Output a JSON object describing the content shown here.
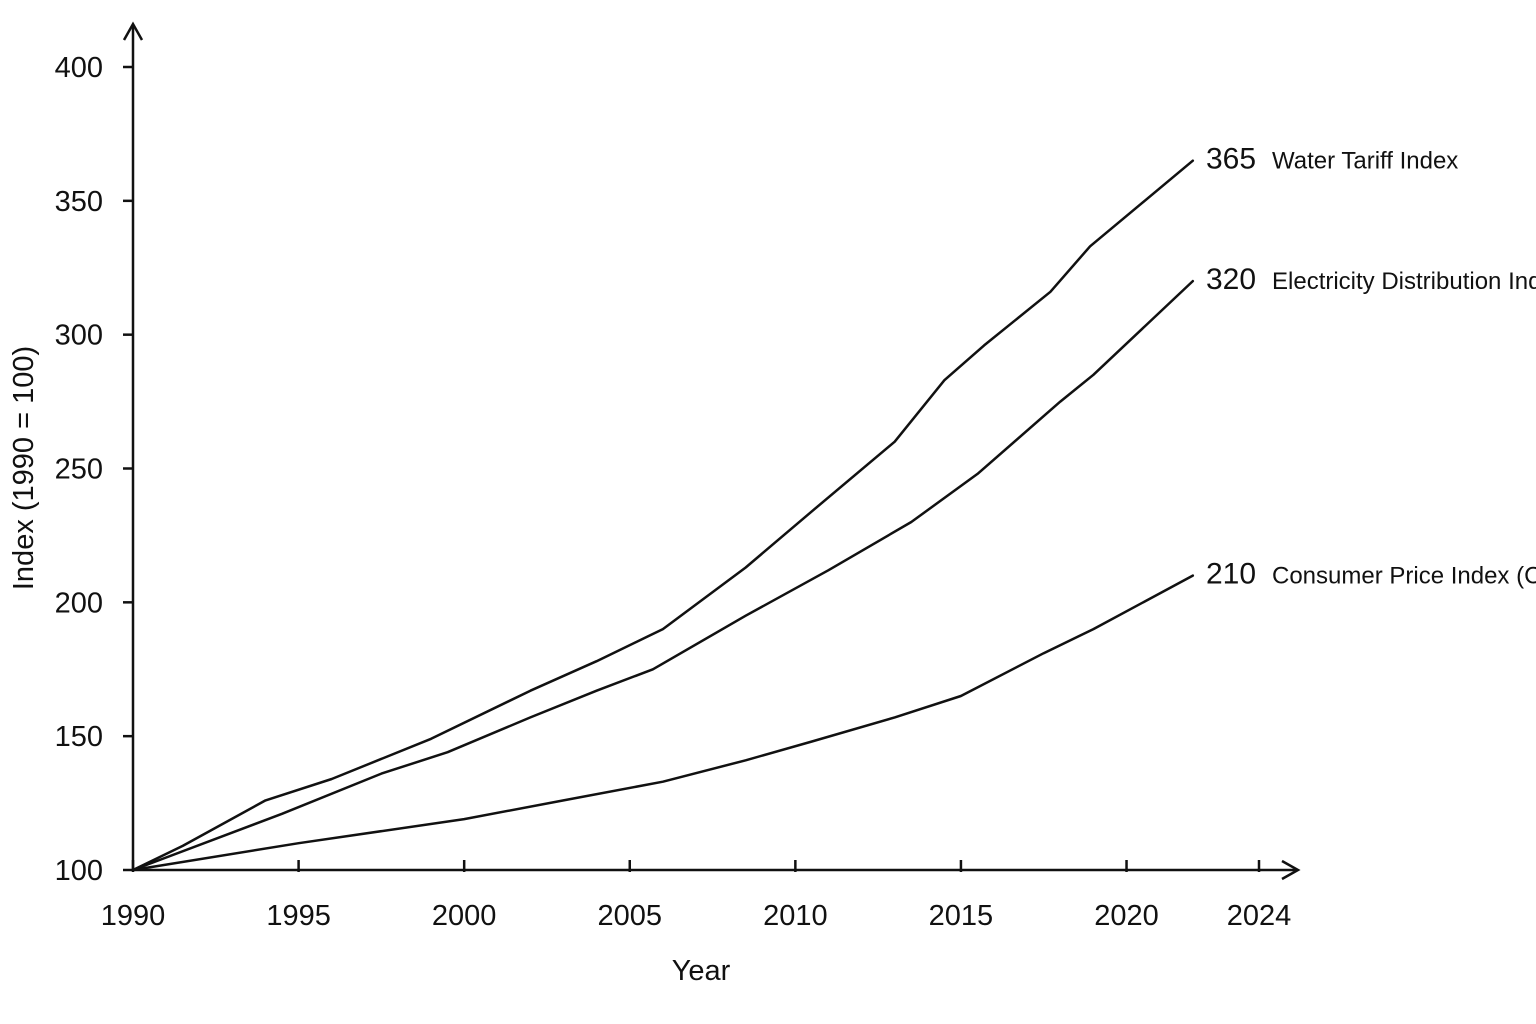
{
  "chart_data": {
    "type": "line",
    "title": "",
    "xlabel": "Year",
    "ylabel": "Index (1990 = 100)",
    "xlim": [
      1990,
      2024
    ],
    "ylim": [
      100,
      400
    ],
    "x_ticks": [
      1990,
      1995,
      2000,
      2005,
      2010,
      2015,
      2020,
      2024
    ],
    "y_ticks": [
      100,
      150,
      200,
      250,
      300,
      350,
      400
    ],
    "grid": false,
    "legend": "labels at line ends",
    "series": [
      {
        "name": "Water Tariff Index",
        "end_label": "365",
        "points": [
          [
            1990,
            100
          ],
          [
            1991.5,
            109
          ],
          [
            1994,
            126
          ],
          [
            1996,
            134
          ],
          [
            1999,
            149
          ],
          [
            2002,
            167
          ],
          [
            2004,
            178
          ],
          [
            2006,
            190
          ],
          [
            2008.5,
            213
          ],
          [
            2010.5,
            234
          ],
          [
            2013,
            260
          ],
          [
            2014.5,
            283
          ],
          [
            2015.7,
            296
          ],
          [
            2017.7,
            316
          ],
          [
            2018.9,
            333
          ],
          [
            2022,
            365
          ]
        ]
      },
      {
        "name": "Electricity Distribution Index",
        "end_label": "320",
        "points": [
          [
            1990,
            100
          ],
          [
            1994.5,
            121
          ],
          [
            1997.5,
            136
          ],
          [
            1999.5,
            144
          ],
          [
            2002,
            157
          ],
          [
            2004,
            167
          ],
          [
            2005.7,
            175
          ],
          [
            2008.5,
            195
          ],
          [
            2011,
            212
          ],
          [
            2013.5,
            230
          ],
          [
            2015.5,
            248
          ],
          [
            2018,
            275
          ],
          [
            2019,
            285
          ],
          [
            2022,
            320
          ]
        ]
      },
      {
        "name": "Consumer Price Index (CPI)",
        "end_label": "210",
        "points": [
          [
            1990,
            100
          ],
          [
            1995,
            110
          ],
          [
            2000,
            119
          ],
          [
            2003,
            126
          ],
          [
            2006,
            133
          ],
          [
            2008.5,
            141
          ],
          [
            2010.5,
            148
          ],
          [
            2013,
            157
          ],
          [
            2015,
            165
          ],
          [
            2017.5,
            181
          ],
          [
            2019,
            190
          ],
          [
            2022,
            210
          ]
        ]
      }
    ]
  }
}
